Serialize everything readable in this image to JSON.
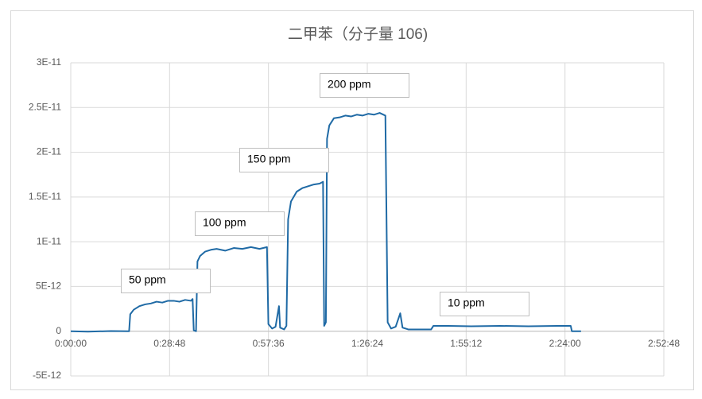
{
  "chart_data": {
    "type": "line",
    "title": "二甲苯（分子量 106)",
    "x": [
      0,
      300,
      700,
      1020,
      1040,
      1100,
      1200,
      1300,
      1400,
      1500,
      1600,
      1700,
      1800,
      1900,
      2000,
      2100,
      2130,
      2150,
      2190,
      2215,
      2260,
      2350,
      2450,
      2550,
      2700,
      2850,
      3000,
      3150,
      3300,
      3430,
      3455,
      3520,
      3580,
      3640,
      3660,
      3730,
      3770,
      3800,
      3850,
      3950,
      4050,
      4150,
      4250,
      4350,
      4410,
      4430,
      4460,
      4480,
      4520,
      4600,
      4700,
      4800,
      4900,
      5000,
      5100,
      5200,
      5300,
      5400,
      5500,
      5540,
      5600,
      5680,
      5760,
      5800,
      5900,
      6300,
      6340,
      6600,
      7000,
      7500,
      8000,
      8500,
      8740,
      8760,
      8920
    ],
    "values": [
      0,
      -5e-14,
      2e-14,
      0,
      1.9e-12,
      2.4e-12,
      2.8e-12,
      3e-12,
      3.1e-12,
      3.3e-12,
      3.2e-12,
      3.4e-12,
      3.4e-12,
      3.3e-12,
      3.5e-12,
      3.4e-12,
      3.6e-12,
      1e-13,
      0,
      7.8e-12,
      8.4e-12,
      8.9e-12,
      9.1e-12,
      9.2e-12,
      9e-12,
      9.3e-12,
      9.2e-12,
      9.4e-12,
      9.2e-12,
      9.4e-12,
      8e-13,
      3e-13,
      5e-13,
      2.8e-12,
      4e-13,
      2e-13,
      6e-13,
      1.25e-11,
      1.45e-11,
      1.56e-11,
      1.6e-11,
      1.62e-11,
      1.64e-11,
      1.65e-11,
      1.67e-11,
      6e-13,
      1e-12,
      2.15e-11,
      2.3e-11,
      2.38e-11,
      2.39e-11,
      2.41e-11,
      2.4e-11,
      2.42e-11,
      2.41e-11,
      2.43e-11,
      2.42e-11,
      2.44e-11,
      2.41e-11,
      1e-12,
      3e-13,
      5e-13,
      2e-12,
      4e-13,
      2e-13,
      2e-13,
      6e-13,
      6e-13,
      5.5e-13,
      6e-13,
      5.5e-13,
      6e-13,
      6e-13,
      0,
      0
    ],
    "color": "#1f6aa5",
    "xlim": [
      0,
      10368
    ],
    "xticks": [
      {
        "value": 0,
        "label": "0:00:00"
      },
      {
        "value": 1728,
        "label": "0:28:48"
      },
      {
        "value": 3456,
        "label": "0:57:36"
      },
      {
        "value": 5184,
        "label": "1:26:24"
      },
      {
        "value": 6912,
        "label": "1:55:12"
      },
      {
        "value": 8640,
        "label": "2:24:00"
      },
      {
        "value": 10368,
        "label": "2:52:48"
      }
    ],
    "ylim": [
      -5e-12,
      3e-11
    ],
    "yticks": [
      {
        "value": -5e-12,
        "label": "-5E-12"
      },
      0,
      {
        "value": 5e-12,
        "label": "5E-12"
      },
      {
        "value": 1e-11,
        "label": "1E-11"
      },
      {
        "value": 1.5e-11,
        "label": "1.5E-11"
      },
      {
        "value": 2e-11,
        "label": "2E-11"
      },
      {
        "value": 2.5e-11,
        "label": "2.5E-11"
      },
      {
        "value": 3e-11,
        "label": "3E-11"
      }
    ],
    "grid": true,
    "annotations": [
      "50 ppm",
      "100 ppm",
      "150 ppm",
      "200 ppm",
      "10 ppm"
    ]
  }
}
